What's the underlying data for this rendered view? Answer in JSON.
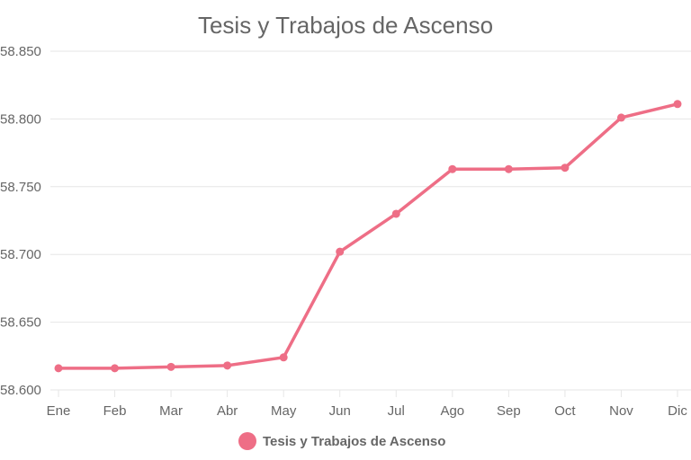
{
  "chart_data": {
    "type": "line",
    "title": "Tesis y Trabajos de Ascenso",
    "categories": [
      "Ene",
      "Feb",
      "Mar",
      "Abr",
      "May",
      "Jun",
      "Jul",
      "Ago",
      "Sep",
      "Oct",
      "Nov",
      "Dic"
    ],
    "series": [
      {
        "name": "Tesis y Trabajos de Ascenso",
        "color": "#ee6e86",
        "values": [
          58616,
          58616,
          58617,
          58618,
          58624,
          58702,
          58730,
          58763,
          58763,
          58764,
          58801,
          58811
        ]
      }
    ],
    "y_ticks": [
      "58.600",
      "58.650",
      "58.700",
      "58.750",
      "58.800",
      "58.850"
    ],
    "ylim": [
      58600,
      58850
    ],
    "grid": true,
    "legend_position": "bottom"
  }
}
